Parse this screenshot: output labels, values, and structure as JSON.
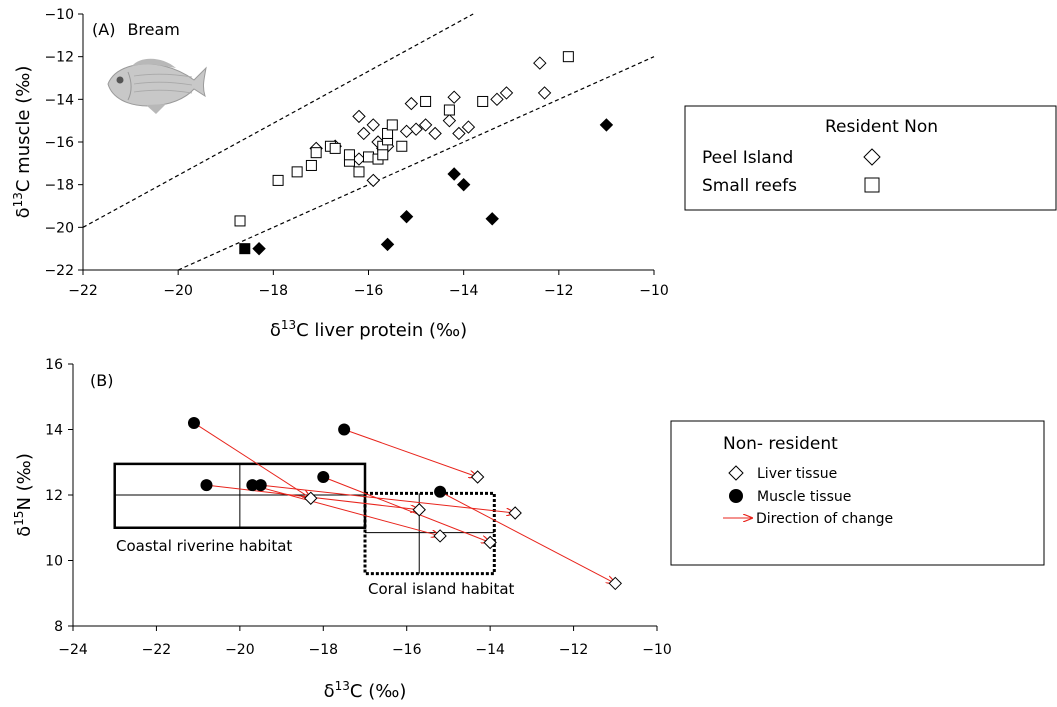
{
  "chart_data": [
    {
      "type": "scatter",
      "panel_label": "(A)",
      "title": "Bream",
      "xlabel": "liver protein (‰)",
      "xlabel_prefix": "δ",
      "xlabel_sup": "13",
      "xlabel_elem": "C",
      "ylabel": "δ13C muscle (‰)",
      "xlim": [
        -22,
        -10
      ],
      "ylim": [
        -22,
        -10
      ],
      "xticks": [
        -22,
        -20,
        -18,
        -16,
        -14,
        -12,
        -10
      ],
      "yticks": [
        -22,
        -20,
        -18,
        -16,
        -14,
        -12,
        -10
      ],
      "legend": {
        "header": "Resident  Non",
        "entries": [
          {
            "label": "Peel Island",
            "marker": "diamond-open"
          },
          {
            "label": "Small reefs",
            "marker": "square-open"
          }
        ]
      },
      "reference_lines": [
        {
          "name": "upper",
          "points": [
            [
              -22,
              -20
            ],
            [
              -13.8,
              -10
            ]
          ]
        },
        {
          "name": "lower",
          "points": [
            [
              -20,
              -22
            ],
            [
              -10,
              -12
            ]
          ]
        }
      ],
      "series": [
        {
          "name": "Peel Island resident",
          "marker": "diamond-open",
          "x": [
            -17.1,
            -16.2,
            -16.7,
            -16.2,
            -15.9,
            -15.8,
            -15.7,
            -15.6,
            -15.9,
            -16.1,
            -15.1,
            -14.8,
            -14.6,
            -14.3,
            -14.1,
            -14.2,
            -13.9,
            -13.3,
            -13.1,
            -12.4,
            -12.3,
            -15.0,
            -15.2
          ],
          "y": [
            -16.3,
            -14.8,
            -16.2,
            -16.8,
            -15.2,
            -16.0,
            -16.3,
            -16.2,
            -17.8,
            -15.6,
            -14.2,
            -15.2,
            -15.6,
            -15.0,
            -15.6,
            -13.9,
            -15.3,
            -14.0,
            -13.7,
            -12.3,
            -13.7,
            -15.4,
            -15.5
          ]
        },
        {
          "name": "Small reefs resident",
          "marker": "square-open",
          "x": [
            -18.7,
            -17.9,
            -17.5,
            -17.2,
            -17.1,
            -16.8,
            -16.4,
            -16.4,
            -16.2,
            -16.0,
            -15.8,
            -15.7,
            -15.7,
            -15.6,
            -15.6,
            -15.5,
            -15.3,
            -14.8,
            -14.3,
            -13.6,
            -11.8,
            -16.7
          ],
          "y": [
            -19.7,
            -17.8,
            -17.4,
            -17.1,
            -16.5,
            -16.2,
            -16.9,
            -16.6,
            -17.4,
            -16.7,
            -16.8,
            -16.2,
            -16.6,
            -15.9,
            -15.6,
            -15.2,
            -16.2,
            -14.1,
            -14.5,
            -14.1,
            -12.0,
            -16.3
          ]
        },
        {
          "name": "Peel Island non-resident",
          "marker": "diamond-filled",
          "x": [
            -18.3,
            -15.6,
            -15.2,
            -14.2,
            -14.0,
            -13.4,
            -11.0
          ],
          "y": [
            -21.0,
            -20.8,
            -19.5,
            -17.5,
            -18.0,
            -19.6,
            -15.2
          ]
        },
        {
          "name": "Small reefs non-resident",
          "marker": "square-filled",
          "x": [
            -18.6
          ],
          "y": [
            -21.0
          ]
        }
      ]
    },
    {
      "type": "scatter",
      "panel_label": "(B)",
      "xlabel": "(‰)",
      "xlabel_prefix": "δ",
      "xlabel_sup": "13",
      "xlabel_elem": "C",
      "ylabel": "δ15N (‰)",
      "xlim": [
        -24,
        -10
      ],
      "ylim": [
        8,
        16
      ],
      "xticks": [
        -24,
        -22,
        -20,
        -18,
        -16,
        -14,
        -12,
        -10
      ],
      "yticks": [
        8,
        10,
        12,
        14,
        16
      ],
      "legend": {
        "header": "Non- resident",
        "entries": [
          {
            "label": "Liver tissue",
            "marker": "diamond-open"
          },
          {
            "label": "Muscle tissue",
            "marker": "circle-filled"
          },
          {
            "label": "Direction of change",
            "marker": "arrow",
            "color": "#e8241c"
          }
        ]
      },
      "habitats": [
        {
          "label": "Coastal riverine habitat",
          "style": "solid",
          "x_range": [
            -23,
            -17
          ],
          "y_range": [
            11.0,
            12.95
          ],
          "x_mean": -20,
          "y_mean": 12.0
        },
        {
          "label": "Coral island habitat",
          "style": "dotted",
          "x_range": [
            -17,
            -13.9
          ],
          "y_range": [
            9.6,
            12.05
          ],
          "x_mean": -15.7,
          "y_mean": 10.85
        }
      ],
      "series": [
        {
          "name": "Liver tissue",
          "marker": "diamond-open",
          "x": [
            -18.3,
            -15.7,
            -15.2,
            -14.3,
            -14.0,
            -13.4,
            -11.0
          ],
          "y": [
            11.9,
            11.55,
            10.75,
            12.55,
            10.55,
            11.45,
            9.3
          ]
        },
        {
          "name": "Muscle tissue",
          "marker": "circle-filled",
          "x": [
            -21.1,
            -20.8,
            -19.7,
            -19.5,
            -17.5,
            -18.0,
            -15.2
          ],
          "y": [
            14.2,
            12.3,
            12.3,
            12.3,
            14.0,
            12.55,
            12.1
          ]
        }
      ],
      "arrows": {
        "color": "#e8241c",
        "pairs": [
          {
            "from": [
              -21.1,
              14.2
            ],
            "to": [
              -18.3,
              11.9
            ]
          },
          {
            "from": [
              -20.8,
              12.3
            ],
            "to": [
              -15.7,
              11.55
            ]
          },
          {
            "from": [
              -19.7,
              12.3
            ],
            "to": [
              -15.2,
              10.75
            ]
          },
          {
            "from": [
              -19.5,
              12.3
            ],
            "to": [
              -13.4,
              11.45
            ]
          },
          {
            "from": [
              -17.5,
              14.0
            ],
            "to": [
              -14.3,
              12.55
            ]
          },
          {
            "from": [
              -18.0,
              12.55
            ],
            "to": [
              -14.0,
              10.55
            ]
          },
          {
            "from": [
              -15.2,
              12.1
            ],
            "to": [
              -11.0,
              9.3
            ]
          }
        ]
      }
    }
  ]
}
